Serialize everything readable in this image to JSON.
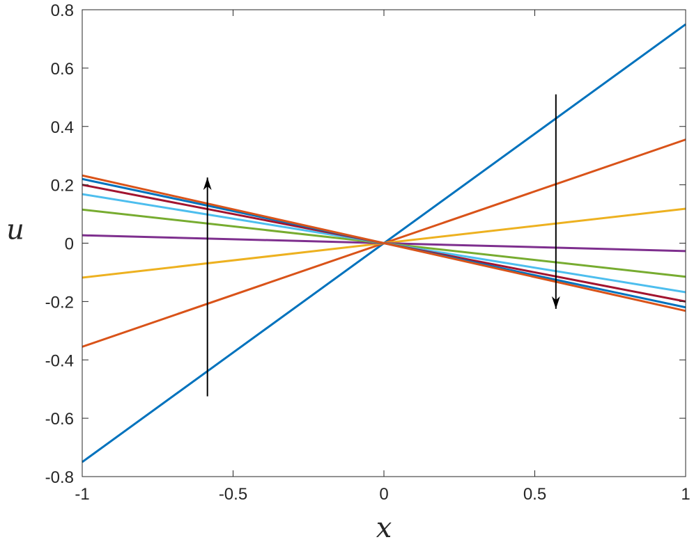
{
  "chart_data": {
    "type": "line",
    "title": "",
    "xlabel": "x",
    "ylabel": "u",
    "xlim": [
      -1,
      1
    ],
    "ylim": [
      -0.8,
      0.8
    ],
    "xticks": [
      -1,
      -0.5,
      0,
      0.5,
      1
    ],
    "xtick_labels": [
      "-1",
      "-0.5",
      "0",
      "0.5",
      "1"
    ],
    "yticks": [
      -0.8,
      -0.6,
      -0.4,
      -0.2,
      0,
      0.2,
      0.4,
      0.6,
      0.8
    ],
    "ytick_labels": [
      "-0.8",
      "-0.6",
      "-0.4",
      "-0.2",
      "0",
      "0.2",
      "0.4",
      "0.6",
      "0.8"
    ],
    "grid": false,
    "series": [
      {
        "color": "#0072BD",
        "x": [
          -1,
          1
        ],
        "y": [
          -0.75,
          0.75
        ]
      },
      {
        "color": "#D95319",
        "x": [
          -1,
          1
        ],
        "y": [
          -0.355,
          0.355
        ]
      },
      {
        "color": "#EDB120",
        "x": [
          -1,
          1
        ],
        "y": [
          -0.118,
          0.118
        ]
      },
      {
        "color": "#7E2F8E",
        "x": [
          -1,
          1
        ],
        "y": [
          0.027,
          -0.027
        ]
      },
      {
        "color": "#77AC30",
        "x": [
          -1,
          1
        ],
        "y": [
          0.115,
          -0.115
        ]
      },
      {
        "color": "#4DBEEE",
        "x": [
          -1,
          1
        ],
        "y": [
          0.168,
          -0.168
        ]
      },
      {
        "color": "#A2142F",
        "x": [
          -1,
          1
        ],
        "y": [
          0.2,
          -0.2
        ]
      },
      {
        "color": "#0072BD",
        "x": [
          -1,
          1
        ],
        "y": [
          0.22,
          -0.22
        ]
      },
      {
        "color": "#D95319",
        "x": [
          -1,
          1
        ],
        "y": [
          0.232,
          -0.232
        ]
      }
    ],
    "annotations": [
      {
        "type": "arrow",
        "x": -0.585,
        "y_from": -0.525,
        "y_to": 0.225,
        "color": "#000000"
      },
      {
        "type": "arrow",
        "x": 0.57,
        "y_from": 0.51,
        "y_to": -0.225,
        "color": "#000000"
      }
    ]
  }
}
